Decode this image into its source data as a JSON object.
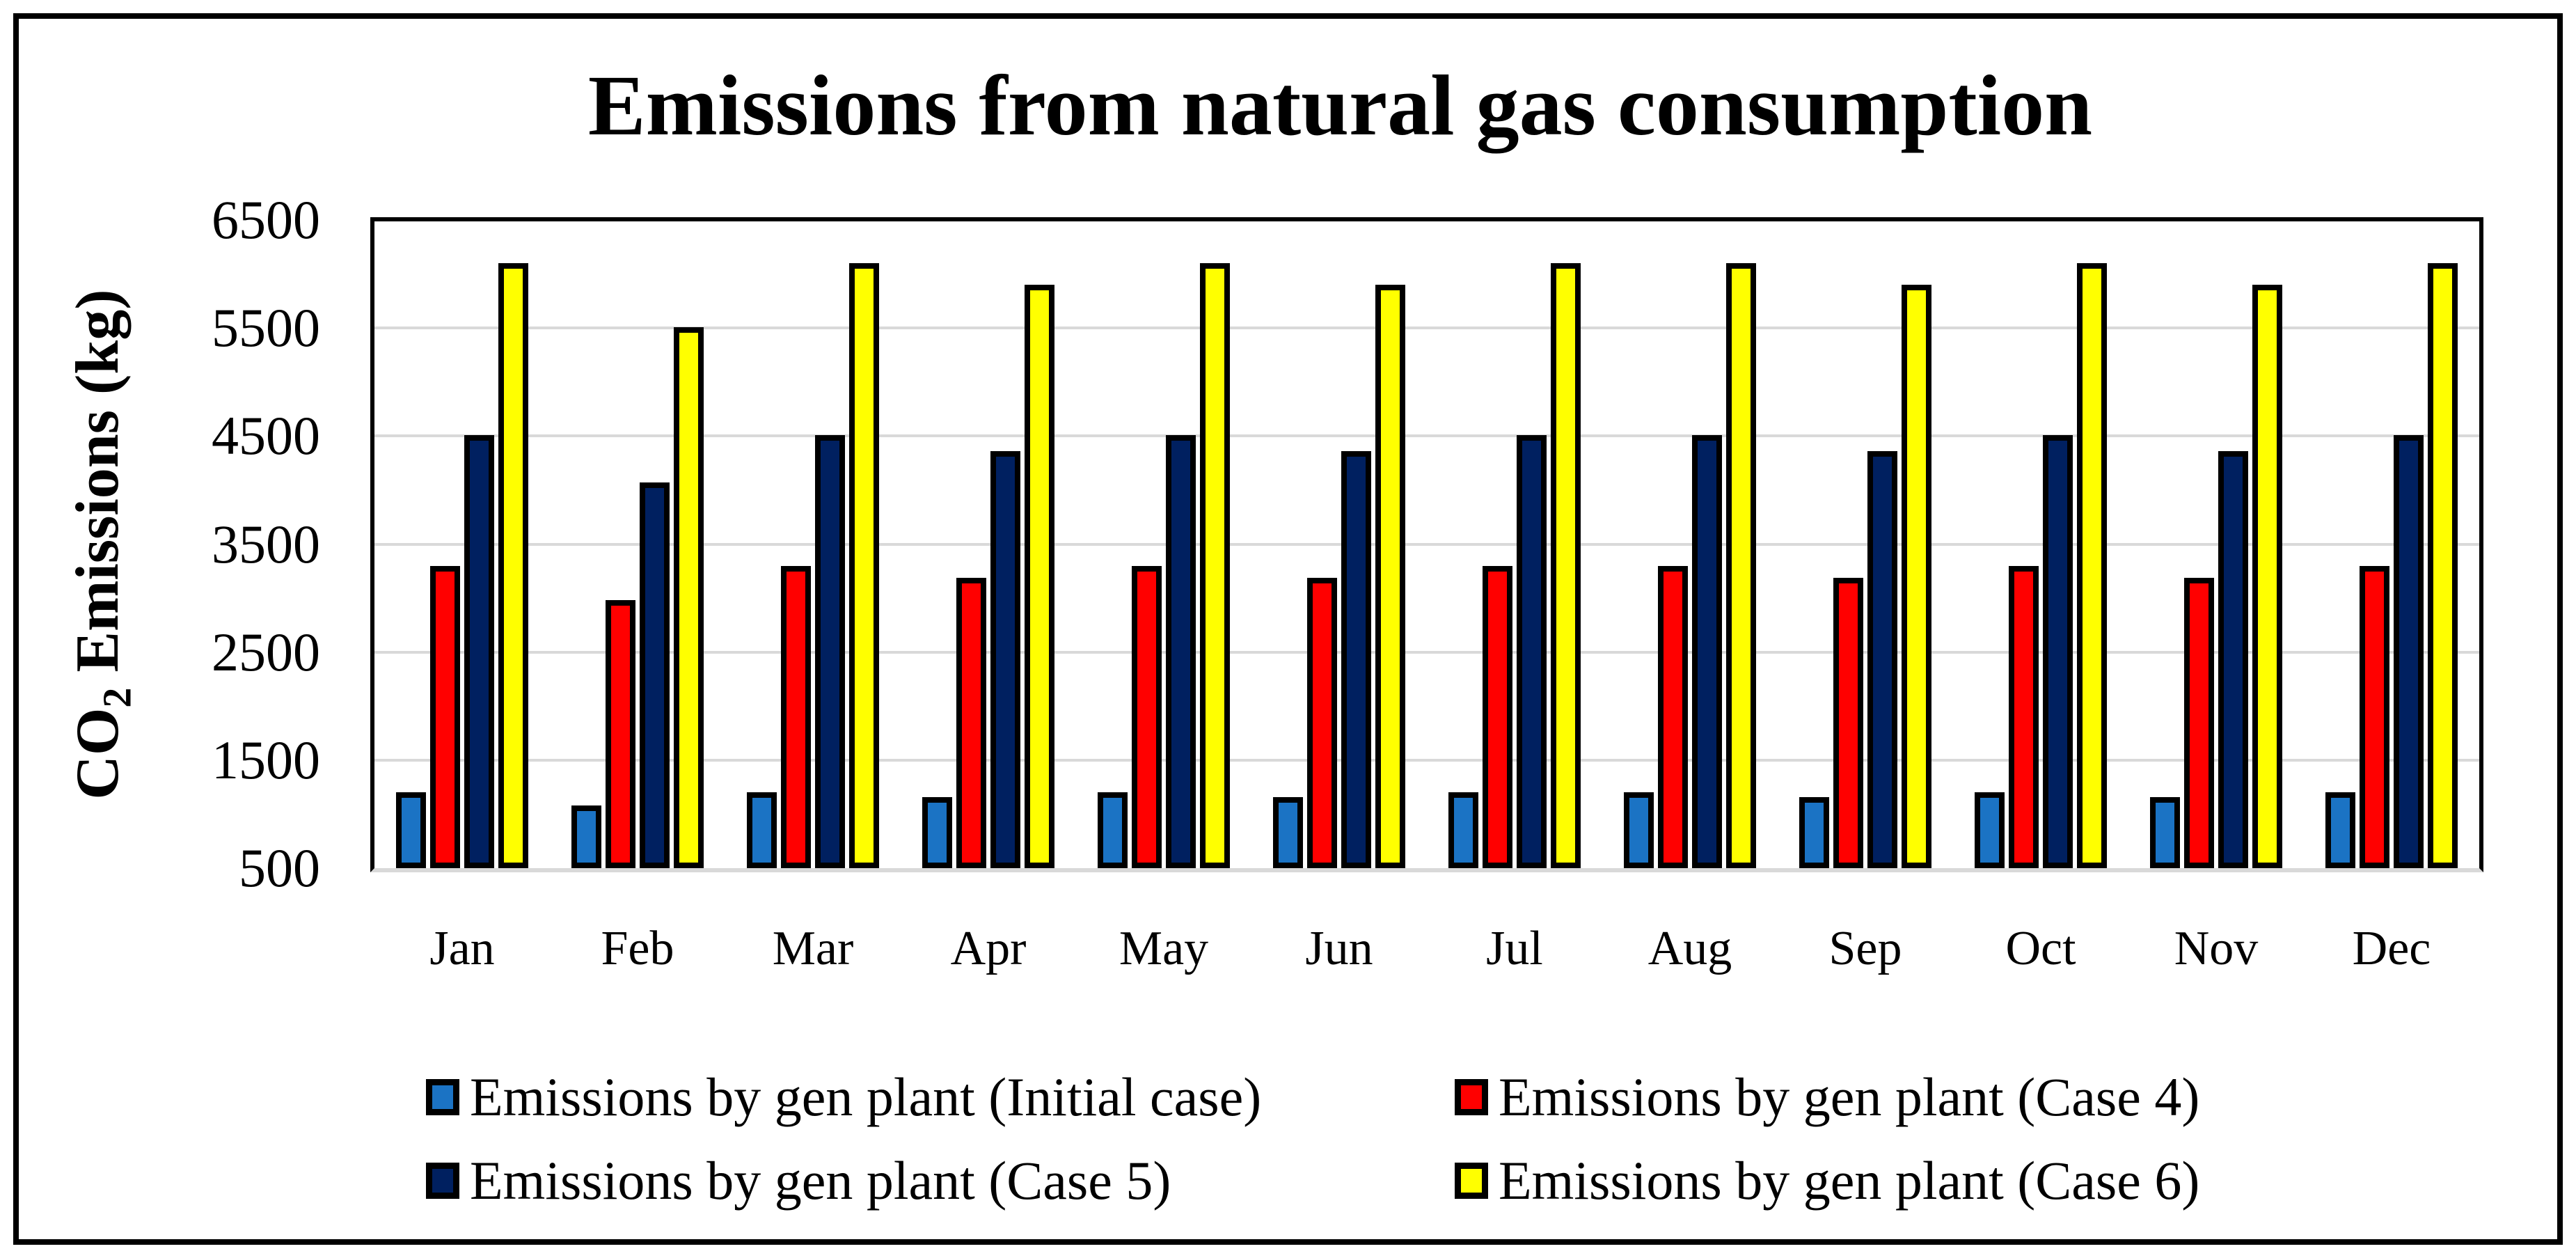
{
  "chart_data": {
    "type": "bar",
    "title": "Emissions from natural gas consumption",
    "ylabel": {
      "prefix": "CO",
      "subscript": "2",
      "suffix": " Emissions (kg)"
    },
    "categories": [
      "Jan",
      "Feb",
      "Mar",
      "Apr",
      "May",
      "Jun",
      "Jul",
      "Aug",
      "Sep",
      "Oct",
      "Nov",
      "Dec"
    ],
    "series": [
      {
        "name": "Emissions by gen plant (Initial case)",
        "color": "#1B73C4",
        "values": [
          1200,
          1080,
          1200,
          1160,
          1200,
          1160,
          1200,
          1200,
          1160,
          1200,
          1160,
          1200
        ]
      },
      {
        "name": "Emissions by gen plant (Case 4)",
        "color": "#FF0000",
        "values": [
          3300,
          2980,
          3300,
          3190,
          3300,
          3190,
          3300,
          3300,
          3190,
          3300,
          3190,
          3300
        ]
      },
      {
        "name": "Emissions by gen plant (Case 5)",
        "color": "#002060",
        "values": [
          4510,
          4070,
          4510,
          4360,
          4510,
          4360,
          4510,
          4510,
          4360,
          4510,
          4360,
          4510
        ]
      },
      {
        "name": "Emissions by gen plant (Case 6)",
        "color": "#FFFF00",
        "values": [
          6100,
          5510,
          6100,
          5900,
          6100,
          5900,
          6100,
          6100,
          5900,
          6100,
          5900,
          6100
        ]
      }
    ],
    "y_ticks": [
      6500,
      5500,
      4500,
      3500,
      2500,
      1500,
      500
    ],
    "ylim": [
      500,
      6500
    ],
    "grid": true,
    "gridline_color": "#D9D9D9",
    "axis_color": "#000000",
    "legend_position": "bottom"
  }
}
